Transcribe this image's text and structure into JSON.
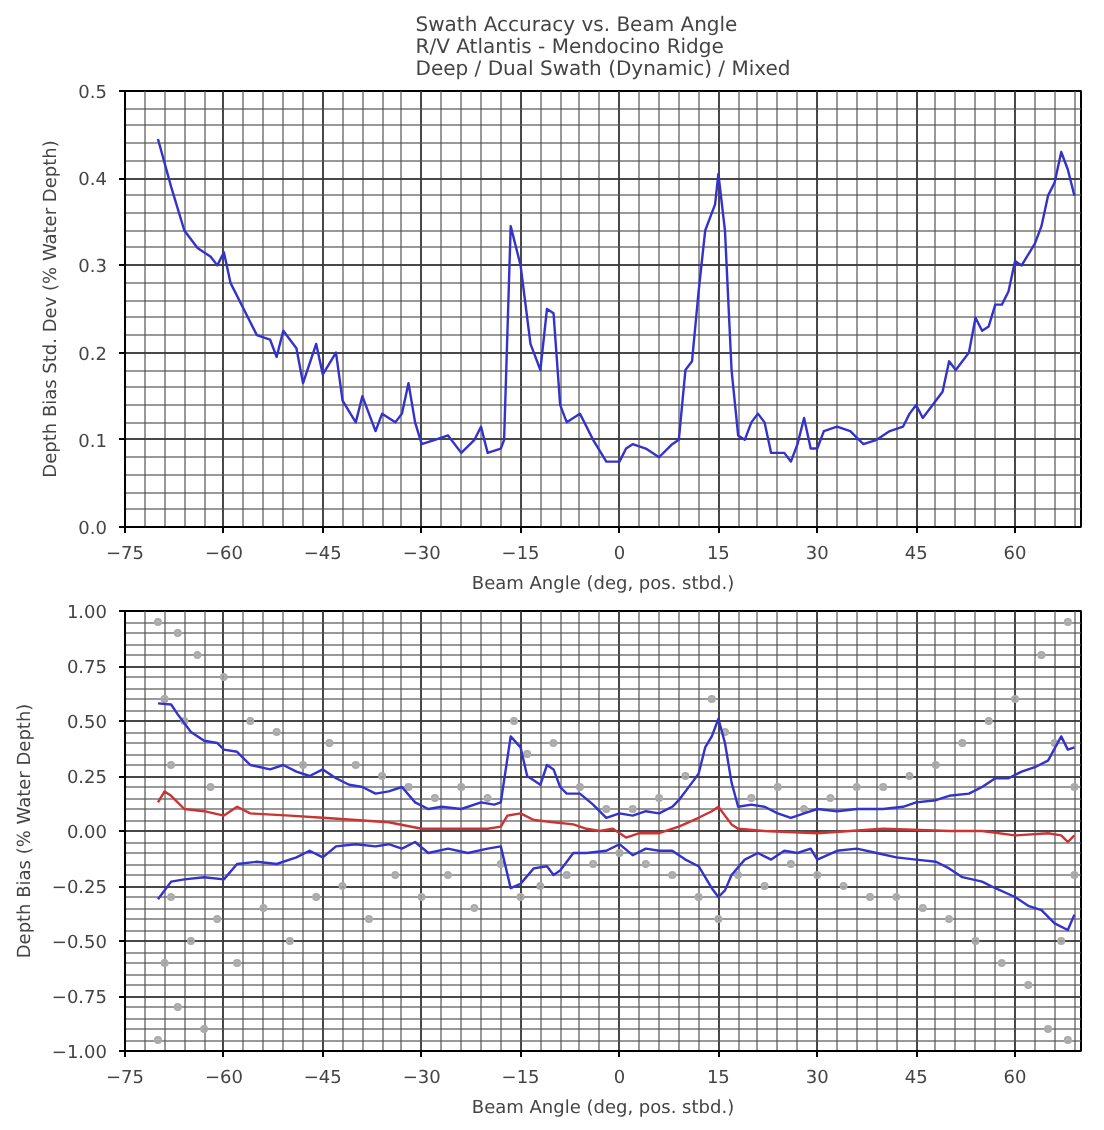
{
  "chart_data": [
    {
      "type": "line",
      "title": "Swath Accuracy vs. Beam Angle\nR/V Atlantis - Mendocino Ridge\nDeep / Dual Swath (Dynamic) / Mixed",
      "xlabel": "Beam Angle (deg, pos. stbd.)",
      "ylabel": "Depth Bias Std. Dev (% Water Depth)",
      "xlim": [
        -75,
        70
      ],
      "xticks": [
        -75,
        -60,
        -45,
        -30,
        -15,
        0,
        15,
        30,
        45,
        60
      ],
      "ylim": [
        0,
        0.5
      ],
      "yticks": [
        {
          "value": 0,
          "label": "0.0"
        },
        0.1,
        0.2,
        0.3,
        0.4,
        0.5
      ],
      "grid": true,
      "series": [
        {
          "color": "#3333cc",
          "x": [
            -70,
            -68,
            -66,
            -64,
            -62,
            -61,
            -60,
            -59,
            -57,
            -55,
            -53,
            -52,
            -51,
            -49,
            -48,
            -46,
            -45,
            -43,
            -42,
            -40,
            -39,
            -37,
            -36,
            -34,
            -33,
            -32,
            -31,
            -30,
            -28,
            -26,
            -24,
            -22,
            -21,
            -20,
            -18,
            -17.5,
            -16.5,
            -15,
            -13.5,
            -12,
            -11,
            -10,
            -9,
            -8,
            -6,
            -4,
            -2,
            0,
            1,
            2,
            4,
            6,
            8,
            9,
            10,
            11,
            12,
            13,
            14.5,
            15,
            16,
            17,
            18,
            19,
            20,
            21,
            22,
            23,
            25,
            26,
            27,
            28,
            29,
            30,
            31,
            33,
            35,
            37,
            39,
            41,
            43,
            44,
            45,
            46,
            47,
            49,
            50,
            51,
            53,
            54,
            55,
            56,
            57,
            58,
            59,
            60,
            61,
            63,
            64,
            65,
            66,
            67,
            68,
            69
          ],
          "values": [
            0.445,
            0.39,
            0.34,
            0.32,
            0.31,
            0.3,
            0.315,
            0.28,
            0.25,
            0.22,
            0.215,
            0.195,
            0.225,
            0.205,
            0.165,
            0.21,
            0.175,
            0.2,
            0.145,
            0.12,
            0.15,
            0.11,
            0.13,
            0.12,
            0.13,
            0.165,
            0.12,
            0.095,
            0.1,
            0.105,
            0.085,
            0.1,
            0.115,
            0.085,
            0.09,
            0.1,
            0.345,
            0.3,
            0.21,
            0.18,
            0.25,
            0.245,
            0.14,
            0.12,
            0.13,
            0.1,
            0.075,
            0.075,
            0.09,
            0.095,
            0.09,
            0.08,
            0.095,
            0.1,
            0.18,
            0.19,
            0.27,
            0.34,
            0.37,
            0.405,
            0.34,
            0.18,
            0.105,
            0.1,
            0.12,
            0.13,
            0.12,
            0.085,
            0.085,
            0.075,
            0.095,
            0.125,
            0.09,
            0.09,
            0.11,
            0.115,
            0.11,
            0.095,
            0.1,
            0.11,
            0.115,
            0.13,
            0.14,
            0.125,
            0.135,
            0.155,
            0.19,
            0.18,
            0.2,
            0.24,
            0.225,
            0.23,
            0.255,
            0.255,
            0.27,
            0.305,
            0.3,
            0.325,
            0.345,
            0.38,
            0.395,
            0.43,
            0.41,
            0.38
          ]
        }
      ]
    },
    {
      "type": "line",
      "xlabel": "Beam Angle (deg, pos. stbd.)",
      "ylabel": "Depth Bias (% Water Depth)",
      "xlim": [
        -75,
        70
      ],
      "xticks": [
        -75,
        -60,
        -45,
        -30,
        -15,
        0,
        15,
        30,
        45,
        60
      ],
      "ylim": [
        -1,
        1
      ],
      "yticks": [
        {
          "value": -1,
          "label": "−1.00"
        },
        {
          "value": -0.75,
          "label": "−0.75"
        },
        {
          "value": -0.5,
          "label": "−0.50"
        },
        {
          "value": -0.25,
          "label": "−0.25"
        },
        {
          "value": 0,
          "label": "0.00"
        },
        0.25,
        {
          "value": 0.5,
          "label": "0.50"
        },
        0.75,
        {
          "value": 1,
          "label": "1.00"
        }
      ],
      "grid": true,
      "series": [
        {
          "type": "scatter",
          "marker": "circle",
          "color": "#aaaaaa",
          "x": [
            -70,
            -70,
            -69,
            -69,
            -68,
            -68,
            -67,
            -67,
            -66,
            -65,
            -64,
            -63,
            -62,
            -61,
            -60,
            -58,
            -56,
            -54,
            -52,
            -50,
            -48,
            -46,
            -44,
            -42,
            -40,
            -38,
            -36,
            -34,
            -32,
            -30,
            -28,
            -26,
            -24,
            -22,
            -20,
            -18,
            -16,
            -15,
            -14,
            -12,
            -10,
            -8,
            -6,
            -4,
            -2,
            0,
            2,
            4,
            6,
            8,
            10,
            12,
            14,
            15,
            16,
            18,
            20,
            22,
            24,
            26,
            28,
            30,
            32,
            34,
            36,
            38,
            40,
            42,
            44,
            46,
            48,
            50,
            52,
            54,
            56,
            58,
            60,
            62,
            64,
            65,
            66,
            67,
            68,
            68,
            69,
            69
          ],
          "values": [
            0.95,
            -0.95,
            0.6,
            -0.6,
            0.3,
            -0.3,
            0.9,
            -0.8,
            0.5,
            -0.5,
            0.8,
            -0.9,
            0.2,
            -0.4,
            0.7,
            -0.6,
            0.5,
            -0.35,
            0.45,
            -0.5,
            0.3,
            -0.3,
            0.4,
            -0.25,
            0.3,
            -0.4,
            0.25,
            -0.2,
            0.2,
            -0.3,
            0.15,
            -0.2,
            0.2,
            -0.35,
            0.15,
            -0.15,
            0.5,
            -0.3,
            0.35,
            -0.25,
            0.4,
            -0.2,
            0.2,
            -0.15,
            0.1,
            -0.1,
            0.1,
            -0.15,
            0.15,
            -0.2,
            0.25,
            -0.3,
            0.6,
            -0.4,
            0.45,
            -0.2,
            0.15,
            -0.25,
            0.2,
            -0.15,
            0.1,
            -0.2,
            0.15,
            -0.25,
            0.2,
            -0.3,
            0.2,
            -0.3,
            0.25,
            -0.35,
            0.3,
            -0.4,
            0.4,
            -0.5,
            0.5,
            -0.6,
            0.6,
            -0.7,
            0.8,
            -0.9,
            0.4,
            -0.5,
            0.95,
            -0.95,
            0.2,
            -0.2
          ]
        },
        {
          "color": "#3333cc",
          "x": [
            -70,
            -68,
            -67,
            -65,
            -63,
            -61,
            -60,
            -58,
            -56,
            -53,
            -51,
            -49,
            -47,
            -45,
            -43,
            -41,
            -39,
            -37,
            -35,
            -33,
            -31,
            -29,
            -27,
            -24,
            -21,
            -19,
            -18,
            -16.5,
            -15,
            -14,
            -12,
            -11,
            -10,
            -9,
            -8,
            -6,
            -4,
            -2,
            0,
            2,
            4,
            6,
            8,
            9,
            11,
            12,
            13,
            14,
            15,
            16,
            17,
            18,
            20,
            22,
            24,
            26,
            28,
            30,
            33,
            36,
            40,
            43,
            45,
            48,
            50,
            53,
            55,
            57,
            59,
            61,
            63,
            65,
            67,
            68,
            69
          ],
          "values": [
            0.58,
            0.575,
            0.53,
            0.45,
            0.41,
            0.4,
            0.37,
            0.36,
            0.3,
            0.28,
            0.3,
            0.27,
            0.25,
            0.28,
            0.24,
            0.21,
            0.2,
            0.17,
            0.18,
            0.2,
            0.13,
            0.1,
            0.11,
            0.1,
            0.13,
            0.12,
            0.13,
            0.43,
            0.38,
            0.25,
            0.21,
            0.3,
            0.28,
            0.2,
            0.17,
            0.17,
            0.12,
            0.06,
            0.08,
            0.07,
            0.09,
            0.08,
            0.11,
            0.14,
            0.22,
            0.26,
            0.38,
            0.43,
            0.51,
            0.4,
            0.22,
            0.11,
            0.12,
            0.11,
            0.08,
            0.06,
            0.08,
            0.1,
            0.09,
            0.1,
            0.1,
            0.11,
            0.13,
            0.14,
            0.16,
            0.17,
            0.2,
            0.24,
            0.24,
            0.27,
            0.29,
            0.32,
            0.43,
            0.37,
            0.38
          ]
        },
        {
          "color": "#cc3333",
          "x": [
            -70,
            -69,
            -68,
            -66,
            -63,
            -60,
            -58,
            -56,
            -50,
            -45,
            -40,
            -35,
            -30,
            -25,
            -20,
            -18,
            -17,
            -15,
            -13,
            -10,
            -7,
            -5,
            -3,
            -1,
            1,
            3,
            6,
            9,
            12,
            14,
            15,
            16,
            17,
            18,
            22,
            30,
            40,
            50,
            55,
            60,
            65,
            67,
            68,
            69
          ],
          "values": [
            0.13,
            0.18,
            0.16,
            0.1,
            0.09,
            0.07,
            0.11,
            0.08,
            0.07,
            0.06,
            0.05,
            0.04,
            0.01,
            0.01,
            0.01,
            0.02,
            0.07,
            0.08,
            0.05,
            0.04,
            0.03,
            0.01,
            0.0,
            0.01,
            -0.03,
            -0.01,
            -0.01,
            0.02,
            0.06,
            0.09,
            0.11,
            0.07,
            0.03,
            0.01,
            0.0,
            -0.01,
            0.01,
            0.0,
            0.0,
            -0.02,
            -0.01,
            -0.02,
            -0.05,
            -0.02
          ]
        },
        {
          "color": "#3333cc",
          "x": [
            -70,
            -68,
            -66,
            -63,
            -60,
            -58,
            -55,
            -52,
            -49,
            -47,
            -45,
            -43,
            -40,
            -37,
            -35,
            -33,
            -31,
            -29,
            -26,
            -23,
            -20,
            -18,
            -16.5,
            -15,
            -13,
            -11,
            -10,
            -9,
            -7,
            -5,
            -2,
            0,
            2,
            4,
            6,
            8,
            10,
            12,
            14,
            15,
            16,
            17,
            19,
            21,
            23,
            25,
            27,
            29,
            30,
            33,
            36,
            39,
            42,
            45,
            48,
            50,
            52,
            55,
            57,
            60,
            62,
            64,
            66,
            68,
            69
          ],
          "values": [
            -0.31,
            -0.23,
            -0.22,
            -0.21,
            -0.22,
            -0.15,
            -0.14,
            -0.15,
            -0.12,
            -0.09,
            -0.12,
            -0.07,
            -0.06,
            -0.07,
            -0.06,
            -0.08,
            -0.05,
            -0.1,
            -0.08,
            -0.1,
            -0.08,
            -0.07,
            -0.26,
            -0.24,
            -0.17,
            -0.16,
            -0.2,
            -0.18,
            -0.1,
            -0.1,
            -0.09,
            -0.06,
            -0.11,
            -0.08,
            -0.09,
            -0.09,
            -0.13,
            -0.16,
            -0.26,
            -0.3,
            -0.27,
            -0.2,
            -0.13,
            -0.1,
            -0.13,
            -0.09,
            -0.1,
            -0.08,
            -0.13,
            -0.09,
            -0.08,
            -0.1,
            -0.12,
            -0.13,
            -0.14,
            -0.17,
            -0.21,
            -0.23,
            -0.26,
            -0.3,
            -0.34,
            -0.36,
            -0.42,
            -0.45,
            -0.38
          ]
        }
      ]
    }
  ]
}
